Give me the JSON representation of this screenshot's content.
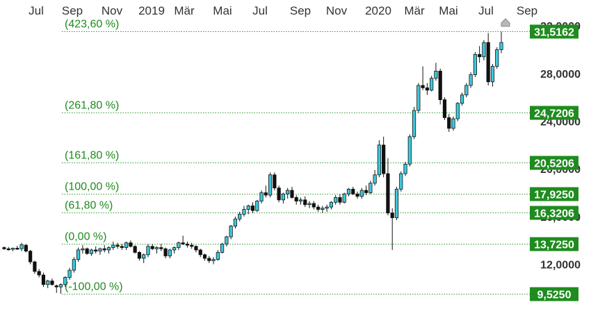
{
  "chart_data": {
    "type": "candlestick",
    "x_ticks": [
      "Jul",
      "Sep",
      "Nov",
      "2019",
      "Mär",
      "Mai",
      "Jul",
      "Sep",
      "Nov",
      "2020",
      "Mär",
      "Mai",
      "Jul",
      "Sep"
    ],
    "y_ticks": [
      "32,0000",
      "28,0000",
      "24,0000",
      "20,0000",
      "16,0000",
      "12,0000"
    ],
    "ylim": [
      9.5,
      32.0
    ],
    "fib_levels": [
      {
        "label": "(423,60 %)",
        "value": "31,5162",
        "y": 31.5162
      },
      {
        "label": "(261,80 %)",
        "value": "24,7206",
        "y": 24.7206
      },
      {
        "label": "(161,80 %)",
        "value": "20,5206",
        "y": 20.5206
      },
      {
        "label": "(100,00 %)",
        "value": "17,9250",
        "y": 17.925
      },
      {
        "label": "(61,80 %)",
        "value": "16,3206",
        "y": 16.3206
      },
      {
        "label": "(0,00 %)",
        "value": "13,7250",
        "y": 13.725
      },
      {
        "label": "(-100,00 %)",
        "value": "9,5250",
        "y": 9.525
      }
    ],
    "candles": [
      [
        13.4,
        13.5,
        13.2,
        13.3
      ],
      [
        13.3,
        13.45,
        13.15,
        13.25
      ],
      [
        13.25,
        13.4,
        13.1,
        13.35
      ],
      [
        13.35,
        13.55,
        13.2,
        13.3
      ],
      [
        13.3,
        13.8,
        13.1,
        13.65
      ],
      [
        13.6,
        13.7,
        13.0,
        13.1
      ],
      [
        13.1,
        13.2,
        12.0,
        12.2
      ],
      [
        12.2,
        12.3,
        11.2,
        11.4
      ],
      [
        11.4,
        11.6,
        10.9,
        11.1
      ],
      [
        11.1,
        11.3,
        10.1,
        10.3
      ],
      [
        10.3,
        10.7,
        10.0,
        10.6
      ],
      [
        10.6,
        10.8,
        10.2,
        10.3
      ],
      [
        10.2,
        10.3,
        9.6,
        10.1
      ],
      [
        10.1,
        10.4,
        9.53,
        10.3
      ],
      [
        10.3,
        11.0,
        10.1,
        10.9
      ],
      [
        10.9,
        11.7,
        10.7,
        11.5
      ],
      [
        11.5,
        12.6,
        11.3,
        12.4
      ],
      [
        12.4,
        13.4,
        12.2,
        13.2
      ],
      [
        13.2,
        13.6,
        12.9,
        13.3
      ],
      [
        13.3,
        13.4,
        12.8,
        12.9
      ],
      [
        12.9,
        13.3,
        12.7,
        13.2
      ],
      [
        13.2,
        13.5,
        12.9,
        13.1
      ],
      [
        13.1,
        13.4,
        12.8,
        13.3
      ],
      [
        13.3,
        13.6,
        13.0,
        13.2
      ],
      [
        13.2,
        13.5,
        12.9,
        13.4
      ],
      [
        13.4,
        13.9,
        13.2,
        13.6
      ],
      [
        13.6,
        13.8,
        13.3,
        13.5
      ],
      [
        13.5,
        13.7,
        13.2,
        13.4
      ],
      [
        13.4,
        13.9,
        13.2,
        13.8
      ],
      [
        13.8,
        14.0,
        13.4,
        13.5
      ],
      [
        13.5,
        13.6,
        12.9,
        13.0
      ],
      [
        13.0,
        13.1,
        12.3,
        12.5
      ],
      [
        12.5,
        12.9,
        12.1,
        12.8
      ],
      [
        12.8,
        13.7,
        12.6,
        13.5
      ],
      [
        13.5,
        13.7,
        13.2,
        13.3
      ],
      [
        13.3,
        13.5,
        12.9,
        13.4
      ],
      [
        13.4,
        13.7,
        13.1,
        13.3
      ],
      [
        13.3,
        13.4,
        12.5,
        12.7
      ],
      [
        12.7,
        13.3,
        12.5,
        13.2
      ],
      [
        13.2,
        13.5,
        12.9,
        13.4
      ],
      [
        13.4,
        13.9,
        13.2,
        13.8
      ],
      [
        13.8,
        14.4,
        13.6,
        13.7
      ],
      [
        13.7,
        13.9,
        13.4,
        13.6
      ],
      [
        13.6,
        13.8,
        13.3,
        13.5
      ],
      [
        13.5,
        13.6,
        13.0,
        13.2
      ],
      [
        13.2,
        13.3,
        12.6,
        12.8
      ],
      [
        12.8,
        12.9,
        12.3,
        12.5
      ],
      [
        12.5,
        12.7,
        12.1,
        12.3
      ],
      [
        12.3,
        12.6,
        12.0,
        12.4
      ],
      [
        12.4,
        13.2,
        12.3,
        13.0
      ],
      [
        13.0,
        13.8,
        12.9,
        13.7
      ],
      [
        13.7,
        14.4,
        13.5,
        14.3
      ],
      [
        14.3,
        15.3,
        14.1,
        15.2
      ],
      [
        15.2,
        16.0,
        15.0,
        15.8
      ],
      [
        15.8,
        16.4,
        15.6,
        16.2
      ],
      [
        16.2,
        16.9,
        16.0,
        16.6
      ],
      [
        16.6,
        17.0,
        16.2,
        16.9
      ],
      [
        16.9,
        17.2,
        16.3,
        16.5
      ],
      [
        16.5,
        17.4,
        16.4,
        17.3
      ],
      [
        17.3,
        18.2,
        17.1,
        18.0
      ],
      [
        18.0,
        18.6,
        17.6,
        17.8
      ],
      [
        17.8,
        19.7,
        17.6,
        19.5
      ],
      [
        19.5,
        19.7,
        18.2,
        18.4
      ],
      [
        18.4,
        18.6,
        17.2,
        17.4
      ],
      [
        17.4,
        18.0,
        17.1,
        17.9
      ],
      [
        17.9,
        18.4,
        17.5,
        18.2
      ],
      [
        18.2,
        18.5,
        17.5,
        17.6
      ],
      [
        17.6,
        17.8,
        17.0,
        17.3
      ],
      [
        17.3,
        17.6,
        17.0,
        17.4
      ],
      [
        17.4,
        17.7,
        16.8,
        17.0
      ],
      [
        17.0,
        17.3,
        16.7,
        17.1
      ],
      [
        17.1,
        17.3,
        16.6,
        16.8
      ],
      [
        16.8,
        17.0,
        16.4,
        16.6
      ],
      [
        16.6,
        16.9,
        16.3,
        16.7
      ],
      [
        16.7,
        17.0,
        16.4,
        16.8
      ],
      [
        16.8,
        17.3,
        16.6,
        17.2
      ],
      [
        17.2,
        17.8,
        17.0,
        17.6
      ],
      [
        17.6,
        17.9,
        17.0,
        17.2
      ],
      [
        17.2,
        18.0,
        17.1,
        17.9
      ],
      [
        17.9,
        18.4,
        17.7,
        18.3
      ],
      [
        18.3,
        18.5,
        17.8,
        17.9
      ],
      [
        17.9,
        18.1,
        17.5,
        17.7
      ],
      [
        17.7,
        18.4,
        17.5,
        18.2
      ],
      [
        18.2,
        18.6,
        17.8,
        18.0
      ],
      [
        18.0,
        19.0,
        17.9,
        18.8
      ],
      [
        18.8,
        19.9,
        18.6,
        19.5
      ],
      [
        19.5,
        22.4,
        19.3,
        22.0
      ],
      [
        22.0,
        22.7,
        19.3,
        19.6
      ],
      [
        19.6,
        20.9,
        16.1,
        16.3
      ],
      [
        16.3,
        16.7,
        13.2,
        15.9
      ],
      [
        15.9,
        18.5,
        15.7,
        18.3
      ],
      [
        18.3,
        19.8,
        18.1,
        19.6
      ],
      [
        19.6,
        20.6,
        19.4,
        20.4
      ],
      [
        20.4,
        22.9,
        20.2,
        22.7
      ],
      [
        22.7,
        25.2,
        22.5,
        24.9
      ],
      [
        24.9,
        27.2,
        24.7,
        27.0
      ],
      [
        27.0,
        28.6,
        26.6,
        26.8
      ],
      [
        26.8,
        27.2,
        26.2,
        26.6
      ],
      [
        26.6,
        27.8,
        26.5,
        27.6
      ],
      [
        27.6,
        28.9,
        27.4,
        28.2
      ],
      [
        28.2,
        28.4,
        25.4,
        25.8
      ],
      [
        25.8,
        26.0,
        24.1,
        24.3
      ],
      [
        24.3,
        24.6,
        23.1,
        23.4
      ],
      [
        23.4,
        24.4,
        23.2,
        24.2
      ],
      [
        24.2,
        25.6,
        24.0,
        25.5
      ],
      [
        25.5,
        26.4,
        25.3,
        26.2
      ],
      [
        26.2,
        27.2,
        26.0,
        27.0
      ],
      [
        27.0,
        28.1,
        26.8,
        27.9
      ],
      [
        27.9,
        29.8,
        27.7,
        29.6
      ],
      [
        29.6,
        30.3,
        28.9,
        29.4
      ],
      [
        29.4,
        30.8,
        29.1,
        30.6
      ],
      [
        30.6,
        31.4,
        27.0,
        27.3
      ],
      [
        27.3,
        28.8,
        26.9,
        28.6
      ],
      [
        28.6,
        30.2,
        28.4,
        30.0
      ],
      [
        30.0,
        31.5,
        29.7,
        30.6
      ]
    ]
  }
}
